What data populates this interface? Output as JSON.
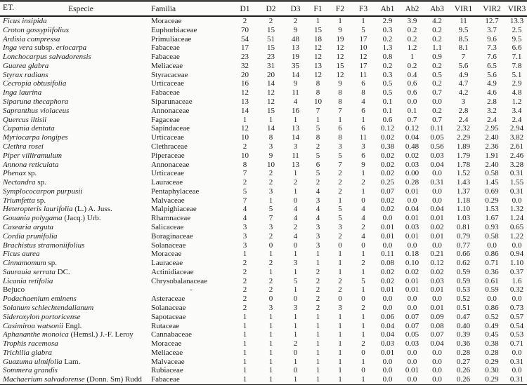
{
  "colors": {
    "text": "#1d1d1d",
    "rule": "#1c1c1c",
    "background": "#fbfbf9"
  },
  "table": {
    "header": {
      "et_label": "ET.",
      "especie_label": "Especie",
      "familia_label": "Familia",
      "metric_columns": [
        "D1",
        "D2",
        "D3",
        "F1",
        "F2",
        "F3",
        "Ab1",
        "Ab2",
        "Ab3",
        "VIR1",
        "VIR2",
        "VIR3"
      ]
    },
    "rows": [
      {
        "especie": [
          {
            "t": "Ficus insipida",
            "i": true
          }
        ],
        "familia": "Moraceae",
        "values": [
          "2",
          "2",
          "2",
          "1",
          "1",
          "1",
          "2.9",
          "3.9",
          "4.2",
          "11",
          "12.7",
          "13.3"
        ]
      },
      {
        "especie": [
          {
            "t": "Croton gossypiifolius",
            "i": true
          }
        ],
        "familia": "Euphorbiaceae",
        "values": [
          "70",
          "15",
          "9",
          "15",
          "9",
          "5",
          "0.3",
          "0.2",
          "0.2",
          "9.5",
          "3.7",
          "2.5"
        ]
      },
      {
        "especie": [
          {
            "t": "Ardisia compressa",
            "i": true
          }
        ],
        "familia": "Primuliaceae",
        "values": [
          "54",
          "51",
          "48",
          "18",
          "19",
          "17",
          "0.2",
          "0.2",
          "0.2",
          "8.5",
          "9.6",
          "9.5"
        ]
      },
      {
        "especie": [
          {
            "t": "Inga vera",
            "i": true
          },
          {
            "t": " subsp. ",
            "i": false
          },
          {
            "t": "eriocarpa",
            "i": true
          }
        ],
        "familia": "Fabaceae",
        "values": [
          "17",
          "15",
          "13",
          "12",
          "12",
          "10",
          "1.3",
          "1.2",
          "1.1",
          "8.1",
          "7.3",
          "6.6"
        ]
      },
      {
        "especie": [
          {
            "t": "Lonchocarpus salvadorensis",
            "i": true
          }
        ],
        "familia": "Fabaceae",
        "values": [
          "23",
          "23",
          "19",
          "12",
          "12",
          "12",
          "0.8",
          "1",
          "0.9",
          "7",
          "7.6",
          "7.1"
        ]
      },
      {
        "especie": [
          {
            "t": "Guarea glabra",
            "i": true
          }
        ],
        "familia": "Meliaceae",
        "values": [
          "32",
          "31",
          "35",
          "13",
          "15",
          "17",
          "0.2",
          "0.2",
          "0.2",
          "5.6",
          "6.5",
          "7.8"
        ]
      },
      {
        "especie": [
          {
            "t": "Styrax radians",
            "i": true
          }
        ],
        "familia": "Styracaceae",
        "values": [
          "20",
          "20",
          "14",
          "12",
          "12",
          "11",
          "0.3",
          "0.4",
          "0.5",
          "4.9",
          "5.6",
          "5.1"
        ]
      },
      {
        "especie": [
          {
            "t": "Cecropia obtusifolia",
            "i": true
          }
        ],
        "familia": "Urticaceae",
        "values": [
          "16",
          "14",
          "9",
          "8",
          "9",
          "6",
          "0.5",
          "0.6",
          "0.2",
          "4.7",
          "4.9",
          "2.9"
        ]
      },
      {
        "especie": [
          {
            "t": "Inga laurina",
            "i": true
          }
        ],
        "familia": "Fabaceae",
        "values": [
          "12",
          "12",
          "11",
          "8",
          "8",
          "8",
          "0.5",
          "0.6",
          "0.7",
          "4.2",
          "4.6",
          "4.8"
        ]
      },
      {
        "especie": [
          {
            "t": "Siparuna thecaphora",
            "i": true
          }
        ],
        "familia": "Siparunaceae",
        "values": [
          "13",
          "12",
          "4",
          "10",
          "8",
          "4",
          "0.1",
          "0.0",
          "0.0",
          "3",
          "2.8",
          "1.2"
        ]
      },
      {
        "especie": [
          {
            "t": "Sapranthus violaceus",
            "i": true
          }
        ],
        "familia": "Annonaceae",
        "values": [
          "14",
          "15",
          "16",
          "7",
          "7",
          "6",
          "0.1",
          "0.1",
          "0.2",
          "2.8",
          "3.2",
          "3.4"
        ]
      },
      {
        "especie": [
          {
            "t": "Quercus iltisii",
            "i": true
          }
        ],
        "familia": "Fagaceae",
        "values": [
          "1",
          "1",
          "1",
          "1",
          "1",
          "1",
          "0.6",
          "0.7",
          "0.7",
          "2.4",
          "2.4",
          "2.4"
        ]
      },
      {
        "especie": [
          {
            "t": "Cupania dentata",
            "i": true
          }
        ],
        "familia": "Sapindaceae",
        "values": [
          "12",
          "14",
          "13",
          "5",
          "6",
          "6",
          "0.12",
          "0.12",
          "0.11",
          "2.32",
          "2.95",
          "2.94"
        ]
      },
      {
        "especie": [
          {
            "t": "Myriocarpa longipes",
            "i": true
          }
        ],
        "familia": "Urticaceae",
        "values": [
          "10",
          "8",
          "14",
          "8",
          "8",
          "11",
          "0.02",
          "0.04",
          "0.05",
          "2.29",
          "2.40",
          "3.82"
        ]
      },
      {
        "especie": [
          {
            "t": "Clethra rosei",
            "i": true
          }
        ],
        "familia": "Clethraceae",
        "values": [
          "2",
          "3",
          "3",
          "2",
          "3",
          "3",
          "0.38",
          "0.48",
          "0.56",
          "1.89",
          "2.36",
          "2.61"
        ]
      },
      {
        "especie": [
          {
            "t": "Piper villiramulum",
            "i": true
          }
        ],
        "familia": "Piperaceae",
        "values": [
          "10",
          "9",
          "11",
          "5",
          "5",
          "6",
          "0.02",
          "0.02",
          "0.03",
          "1.79",
          "1.91",
          "2.46"
        ]
      },
      {
        "especie": [
          {
            "t": "Annona reticulata",
            "i": true
          }
        ],
        "familia": "Annonaceae",
        "values": [
          "8",
          "10",
          "13",
          "6",
          "7",
          "9",
          "0.02",
          "0.03",
          "0.04",
          "1.78",
          "2.40",
          "3.28"
        ]
      },
      {
        "especie": [
          {
            "t": "Phenax",
            "i": true
          },
          {
            "t": " sp.",
            "i": false
          }
        ],
        "familia": "Urticaceae",
        "values": [
          "7",
          "2",
          "1",
          "5",
          "2",
          "1",
          "0.02",
          "0.00",
          "0.0",
          "1.52",
          "0.58",
          "0.31"
        ]
      },
      {
        "especie": [
          {
            "t": "Nectandra",
            "i": true
          },
          {
            "t": " sp.",
            "i": false
          }
        ],
        "familia": "Lauraceae",
        "values": [
          "2",
          "2",
          "2",
          "2",
          "2",
          "2",
          "0.25",
          "0.28",
          "0.31",
          "1.43",
          "1.45",
          "1.55"
        ]
      },
      {
        "especie": [
          {
            "t": "Symplococarpon purpusii",
            "i": true
          }
        ],
        "familia": "Pentaphylaceae",
        "values": [
          "5",
          "3",
          "1",
          "4",
          "2",
          "1",
          "0.07",
          "0.01",
          "0.0",
          "1.37",
          "0.69",
          "0.31"
        ]
      },
      {
        "especie": [
          {
            "t": "Triumfetta",
            "i": true
          },
          {
            "t": " sp.",
            "i": false
          }
        ],
        "familia": "Malvaceae",
        "values": [
          "7",
          "1",
          "0",
          "3",
          "1",
          "0",
          "0.02",
          "0.0",
          "0.0",
          "1.18",
          "0.29",
          "0.0"
        ]
      },
      {
        "especie": [
          {
            "t": "Heteropteris laurifolia",
            "i": true
          },
          {
            "t": " (L.) A. Juss.",
            "i": false
          }
        ],
        "familia": "Malpighiaceae",
        "values": [
          "4",
          "5",
          "4",
          "4",
          "5",
          "4",
          "0.02",
          "0.04",
          "0.04",
          "1.10",
          "1.53",
          "1.32"
        ]
      },
      {
        "especie": [
          {
            "t": "Gouania polygama",
            "i": true
          },
          {
            "t": " (Jacq.) Urb.",
            "i": false
          }
        ],
        "familia": "Rhamnaceae",
        "values": [
          "4",
          "7",
          "4",
          "4",
          "5",
          "4",
          "0.0",
          "0.01",
          "0.01",
          "1.03",
          "1.67",
          "1.24"
        ]
      },
      {
        "especie": [
          {
            "t": "Casearia arguta",
            "i": true
          }
        ],
        "familia": "Salicaceae",
        "values": [
          "3",
          "3",
          "2",
          "3",
          "3",
          "2",
          "0.01",
          "0.03",
          "0.02",
          "0.81",
          "0.93",
          "0.65"
        ]
      },
      {
        "especie": [
          {
            "t": "Cordia prunifolia",
            "i": true
          }
        ],
        "familia": "Boraginaceae",
        "values": [
          "3",
          "2",
          "4",
          "3",
          "2",
          "4",
          "0.01",
          "0.01",
          "0.01",
          "0.79",
          "0.58",
          "1.22"
        ]
      },
      {
        "especie": [
          {
            "t": "Brachistus stramoniifolius",
            "i": true
          }
        ],
        "familia": "Solanaceae",
        "values": [
          "3",
          "0",
          "0",
          "3",
          "0",
          "0",
          "0.0",
          "0.0",
          "0.0",
          "0.77",
          "0.0",
          "0.0"
        ]
      },
      {
        "especie": [
          {
            "t": "Ficus aurea",
            "i": true
          }
        ],
        "familia": "Moraceae",
        "values": [
          "1",
          "1",
          "1",
          "1",
          "1",
          "1",
          "0.11",
          "0.18",
          "0.21",
          "0.66",
          "0.86",
          "0.94"
        ]
      },
      {
        "especie": [
          {
            "t": "Cinnamomum",
            "i": true
          },
          {
            "t": " sp.",
            "i": false
          }
        ],
        "familia": "Lauraceae",
        "values": [
          "2",
          "2",
          "3",
          "1",
          "1",
          "2",
          "0.08",
          "0.10",
          "0.12",
          "0.62",
          "0.71",
          "1.10"
        ]
      },
      {
        "especie": [
          {
            "t": "Saurauia serrata",
            "i": true
          },
          {
            "t": " DC.",
            "i": false
          }
        ],
        "familia": "Actinidiaceae",
        "values": [
          "2",
          "1",
          "1",
          "2",
          "1",
          "1",
          "0.02",
          "0.02",
          "0.02",
          "0.59",
          "0.36",
          "0.37"
        ]
      },
      {
        "especie": [
          {
            "t": "Licania retifolia",
            "i": true
          }
        ],
        "familia": "Chrysobalanaceae",
        "values": [
          "2",
          "2",
          "5",
          "2",
          "2",
          "5",
          "0.02",
          "0.01",
          "0.03",
          "0.59",
          "0.61",
          "1.6"
        ]
      },
      {
        "especie": [
          {
            "t": "Bejuco",
            "i": false
          }
        ],
        "familia": "-",
        "values": [
          "2",
          "2",
          "1",
          "2",
          "2",
          "1",
          "0.01",
          "0.01",
          "0.01",
          "0.53",
          "0.59",
          "0.32"
        ]
      },
      {
        "especie": [
          {
            "t": "Podachaenium eminens",
            "i": true
          }
        ],
        "familia": "Asteraceae",
        "values": [
          "2",
          "0",
          "0",
          "2",
          "0",
          "0",
          "0.0",
          "0.0",
          "0.0",
          "0.52",
          "0.0",
          "0.0"
        ]
      },
      {
        "especie": [
          {
            "t": "Solanum schlechtendalianum",
            "i": true
          }
        ],
        "familia": "Solanaceae",
        "values": [
          "2",
          "3",
          "3",
          "2",
          "3",
          "2",
          "0.0",
          "0.0",
          "0.01",
          "0.51",
          "0.86",
          "0.73"
        ]
      },
      {
        "especie": [
          {
            "t": "Sideroxylon portoricense",
            "i": true
          }
        ],
        "familia": "Sapotaceae",
        "values": [
          "1",
          "1",
          "1",
          "1",
          "1",
          "1",
          "0.06",
          "0.07",
          "0.09",
          "0.47",
          "0.52",
          "0.57"
        ]
      },
      {
        "especie": [
          {
            "t": "Casimiroa watsonii",
            "i": true
          },
          {
            "t": " Engl.",
            "i": false
          }
        ],
        "familia": "Rutaceae",
        "values": [
          "1",
          "1",
          "1",
          "1",
          "1",
          "1",
          "0.04",
          "0.07",
          "0.08",
          "0.40",
          "0.49",
          "0.54"
        ]
      },
      {
        "especie": [
          {
            "t": "Aphananthe monoica",
            "i": true
          },
          {
            "t": " (Hemsl.) J.-F. Leroy",
            "i": false
          }
        ],
        "familia": "Cannabaceae",
        "values": [
          "1",
          "1",
          "1",
          "1",
          "1",
          "1",
          "0.04",
          "0.05",
          "0.07",
          "0.39",
          "0.45",
          "0.53"
        ]
      },
      {
        "especie": [
          {
            "t": "Trophis racemosa",
            "i": true
          }
        ],
        "familia": "Moraceae",
        "values": [
          "1",
          "1",
          "2",
          "1",
          "1",
          "2",
          "0.03",
          "0.03",
          "0.04",
          "0.36",
          "0.38",
          "0.71"
        ]
      },
      {
        "especie": [
          {
            "t": "Trichilia glabra",
            "i": true
          }
        ],
        "familia": "Meliaceae",
        "values": [
          "1",
          "1",
          "0",
          "1",
          "1",
          "0",
          "0.01",
          "0.0",
          "0.0",
          "0.28",
          "0.28",
          "0.0"
        ]
      },
      {
        "especie": [
          {
            "t": "Guazuma ulmifolia",
            "i": true
          },
          {
            "t": " Lam.",
            "i": false
          }
        ],
        "familia": "Malvaceae",
        "values": [
          "1",
          "1",
          "1",
          "1",
          "1",
          "1",
          "0.0",
          "0.0",
          "0.0",
          "0.27",
          "0.29",
          "0.31"
        ]
      },
      {
        "especie": [
          {
            "t": "Sommera grandis",
            "i": true
          }
        ],
        "familia": "Rubiaceae",
        "values": [
          "1",
          "1",
          "0",
          "1",
          "1",
          "0",
          "0.0",
          "0.01",
          "0.0",
          "0.26",
          "0.30",
          "0.0"
        ]
      },
      {
        "especie": [
          {
            "t": "Machaerium salvadorense",
            "i": true
          },
          {
            "t": " (Donn. Sm) Rudd",
            "i": false
          }
        ],
        "familia": "Fabaceae",
        "values": [
          "1",
          "1",
          "1",
          "1",
          "1",
          "1",
          "0.0",
          "0.0",
          "0.0",
          "0.26",
          "0.29",
          "0.31"
        ]
      }
    ]
  }
}
